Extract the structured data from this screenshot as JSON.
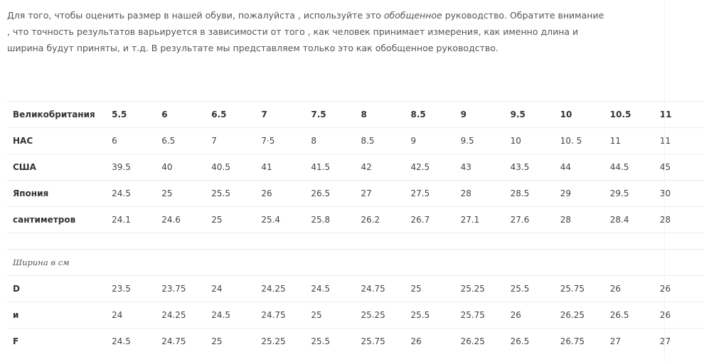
{
  "intro": {
    "before_em": "Для того, чтобы оценить размер в нашей обуви, пожалуйста , используйте это ",
    "em": "обобщенное",
    "after_em": " руководство. Обратите внимание , что точность результатов варьируется в зависимости от того , как человек принимает измерения, как именно длина и ширина будут приняты, и т.д. В результате мы представляем только это как обобщенное руководство."
  },
  "size_rows": [
    {
      "label": "Великобритания",
      "values": [
        "5.5",
        "6",
        "6.5",
        "7",
        "7.5",
        "8",
        "8.5",
        "9",
        "9.5",
        "10",
        "10.5",
        "11"
      ]
    },
    {
      "label": "НАС",
      "values": [
        "6",
        "6.5",
        "7",
        "7·5",
        "8",
        "8.5",
        "9",
        "9.5",
        "10",
        "10. 5",
        "11",
        "11"
      ]
    },
    {
      "label": "США",
      "values": [
        "39.5",
        "40",
        "40.5",
        "41",
        "41.5",
        "42",
        "42.5",
        "43",
        "43.5",
        "44",
        "44.5",
        "45"
      ]
    },
    {
      "label": "Япония",
      "values": [
        "24.5",
        "25",
        "25.5",
        "26",
        "26.5",
        "27",
        "27.5",
        "28",
        "28.5",
        "29",
        "29.5",
        "30"
      ]
    },
    {
      "label": "сантиметров",
      "values": [
        "24.1",
        "24.6",
        "25",
        "25.4",
        "25.8",
        "26.2",
        "26.7",
        "27.1",
        "27.6",
        "28",
        "28.4",
        "28"
      ]
    }
  ],
  "width_note": "Ширина в см",
  "width_rows": [
    {
      "label": "D",
      "values": [
        "23.5",
        "23.75",
        "24",
        "24.25",
        "24.5",
        "24.75",
        "25",
        "25.25",
        "25.5",
        "25.75",
        "26",
        "26"
      ]
    },
    {
      "label": "и",
      "values": [
        "24",
        "24.25",
        "24.5",
        "24.75",
        "25",
        "25.25",
        "25.5",
        "25.75",
        "26",
        "26.25",
        "26.5",
        "26"
      ]
    },
    {
      "label": "F",
      "values": [
        "24.5",
        "24.75",
        "25",
        "25.25",
        "25.5",
        "25.75",
        "26",
        "26.25",
        "26.5",
        "26.75",
        "27",
        "27"
      ]
    }
  ]
}
